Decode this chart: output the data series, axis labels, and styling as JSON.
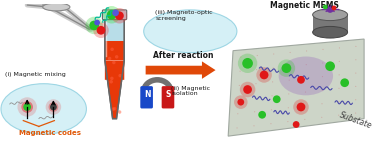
{
  "bg_color": "#ffffff",
  "labels": {
    "magnetic_mixing": "(i) Magnetic mixing",
    "magnetic_codes": "Magnetic codes",
    "after_reaction": "After reaction",
    "magnetic_isolation": "(ii) Magnetic\nisolation",
    "magneto_optic": "(iii) Magneto-optic\nscreening",
    "magnetic_mems": "Magnetic MEMS",
    "substrate": "Substate"
  },
  "colors": {
    "light_blue_bg": "#ceeef5",
    "tube_red": "#e83808",
    "tube_top_fill": "#b8dde8",
    "tube_outline": "#666666",
    "arrow_orange": "#e04808",
    "magnet_blue": "#1848c8",
    "magnet_red": "#c81818",
    "substrate_top": "#d0d8cc",
    "substrate_right": "#b8c0b4",
    "substrate_left": "#c8d0c4",
    "green_dot": "#28c028",
    "red_dot": "#e01818",
    "blue_dot": "#4848c0",
    "purple_glow": "#8848b8",
    "cyan_wave": "#00b898",
    "blue_wave": "#4848a8",
    "orange_label": "#e05808",
    "text_dark": "#181818",
    "tweezers": "#707070"
  }
}
